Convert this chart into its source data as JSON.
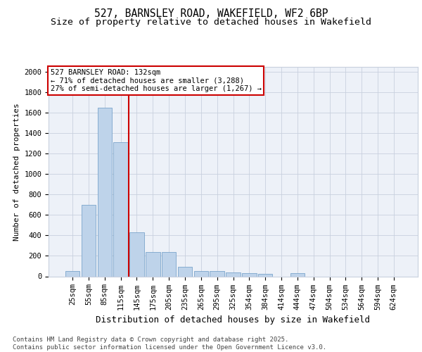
{
  "title_line1": "527, BARNSLEY ROAD, WAKEFIELD, WF2 6BP",
  "title_line2": "Size of property relative to detached houses in Wakefield",
  "xlabel": "Distribution of detached houses by size in Wakefield",
  "ylabel": "Number of detached properties",
  "categories": [
    "25sqm",
    "55sqm",
    "85sqm",
    "115sqm",
    "145sqm",
    "175sqm",
    "205sqm",
    "235sqm",
    "265sqm",
    "295sqm",
    "325sqm",
    "354sqm",
    "384sqm",
    "414sqm",
    "444sqm",
    "474sqm",
    "504sqm",
    "534sqm",
    "564sqm",
    "594sqm",
    "624sqm"
  ],
  "values": [
    55,
    700,
    1650,
    1310,
    430,
    240,
    240,
    90,
    55,
    50,
    35,
    30,
    25,
    0,
    30,
    0,
    0,
    0,
    0,
    0,
    0
  ],
  "bar_color": "#bed3ea",
  "bar_edge_color": "#6899c4",
  "vline_color": "#cc0000",
  "vline_pos": 3.5,
  "annotation_text": "527 BARNSLEY ROAD: 132sqm\n← 71% of detached houses are smaller (3,288)\n27% of semi-detached houses are larger (1,267) →",
  "annotation_box_facecolor": "#ffffff",
  "annotation_box_edgecolor": "#cc0000",
  "bg_color": "#edf1f8",
  "grid_color": "#c8d0de",
  "ylim": [
    0,
    2050
  ],
  "yticks": [
    0,
    200,
    400,
    600,
    800,
    1000,
    1200,
    1400,
    1600,
    1800,
    2000
  ],
  "footer_text": "Contains HM Land Registry data © Crown copyright and database right 2025.\nContains public sector information licensed under the Open Government Licence v3.0.",
  "title_fontsize": 10.5,
  "subtitle_fontsize": 9.5,
  "ylabel_fontsize": 8,
  "xlabel_fontsize": 9,
  "tick_fontsize": 7.5,
  "footer_fontsize": 6.5,
  "ann_fontsize": 7.5
}
